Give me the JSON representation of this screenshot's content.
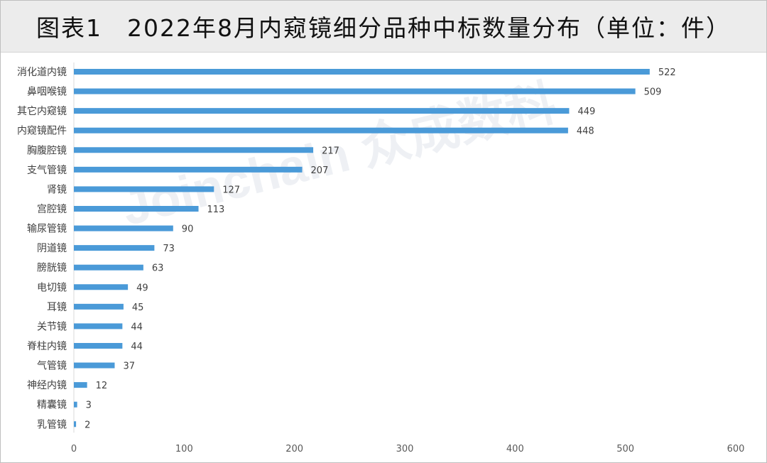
{
  "title": "图表1　2022年8月内窥镜细分品种中标数量分布（单位：件）",
  "watermark": "Joinchain 众成数科",
  "colors": {
    "bar": "#4a9ad8",
    "axis": "#d9d9d9"
  },
  "chart_data": {
    "type": "bar",
    "orientation": "horizontal",
    "categories": [
      "消化道内镜",
      "鼻咽喉镜",
      "其它内窥镜",
      "内窥镜配件",
      "胸腹腔镜",
      "支气管镜",
      "肾镜",
      "宫腔镜",
      "输尿管镜",
      "阴道镜",
      "膀胱镜",
      "电切镜",
      "耳镜",
      "关节镜",
      "脊柱内镜",
      "气管镜",
      "神经内镜",
      "精囊镜",
      "乳管镜"
    ],
    "values": [
      522,
      509,
      449,
      448,
      217,
      207,
      127,
      113,
      90,
      73,
      63,
      49,
      45,
      44,
      44,
      37,
      12,
      3,
      2
    ],
    "xlim": [
      0,
      600
    ],
    "xticks": [
      0,
      100,
      200,
      300,
      400,
      500,
      600
    ],
    "grid": false,
    "data_labels": true
  }
}
